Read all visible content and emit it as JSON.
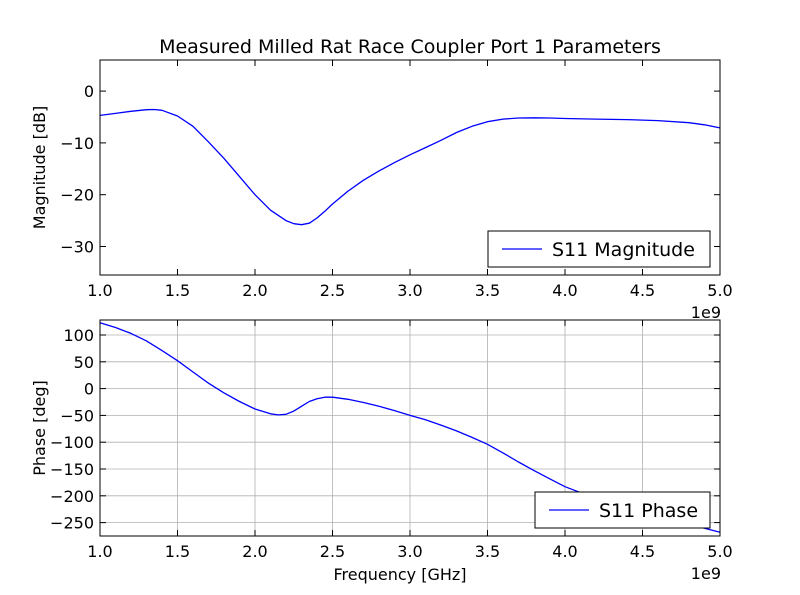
{
  "figure_title": "Measured Milled Rat Race Coupler Port 1 Parameters",
  "colors": {
    "series": "#0000ff",
    "grid": "#b0b0b0",
    "axes": "#000000"
  },
  "chart_data": [
    {
      "type": "line",
      "title": "Measured Milled Rat Race Coupler Port 1 Parameters",
      "xlabel": "",
      "ylabel": "Magnitude [dB]",
      "x_offset_label": "1e9",
      "xlim": [
        1.0,
        5.0
      ],
      "ylim": [
        -35.5,
        6
      ],
      "xticks": [
        "1.0",
        "1.5",
        "2.0",
        "2.5",
        "3.0",
        "3.5",
        "4.0",
        "4.5",
        "5.0"
      ],
      "yticks": [
        {
          "value": 0,
          "label": "0"
        },
        {
          "value": -10,
          "label": "−10"
        },
        {
          "value": -20,
          "label": "−20"
        },
        {
          "value": -30,
          "label": "−30"
        }
      ],
      "grid": false,
      "legend_position": "lower-right",
      "series": [
        {
          "name": "S11 Magnitude",
          "color": "#0000ff",
          "x": [
            1.0,
            1.1,
            1.2,
            1.3,
            1.35,
            1.4,
            1.5,
            1.6,
            1.7,
            1.8,
            1.9,
            2.0,
            2.1,
            2.2,
            2.25,
            2.3,
            2.35,
            2.4,
            2.45,
            2.5,
            2.6,
            2.7,
            2.8,
            2.9,
            3.0,
            3.1,
            3.2,
            3.3,
            3.4,
            3.5,
            3.6,
            3.7,
            3.8,
            3.9,
            4.0,
            4.2,
            4.4,
            4.6,
            4.8,
            4.9,
            5.0
          ],
          "y": [
            -4.7,
            -4.3,
            -3.9,
            -3.6,
            -3.55,
            -3.7,
            -4.8,
            -6.8,
            -9.8,
            -13.0,
            -16.5,
            -20.0,
            -23.0,
            -25.0,
            -25.6,
            -25.8,
            -25.5,
            -24.5,
            -23.2,
            -21.8,
            -19.3,
            -17.2,
            -15.4,
            -13.8,
            -12.3,
            -10.9,
            -9.5,
            -8.0,
            -6.8,
            -5.9,
            -5.4,
            -5.2,
            -5.15,
            -5.2,
            -5.3,
            -5.4,
            -5.5,
            -5.7,
            -6.1,
            -6.5,
            -7.1
          ]
        }
      ]
    },
    {
      "type": "line",
      "xlabel": "Frequency [GHz]",
      "ylabel": "Phase [deg]",
      "x_offset_label": "1e9",
      "xlim": [
        1.0,
        5.0
      ],
      "ylim": [
        -275,
        128
      ],
      "xticks": [
        "1.0",
        "1.5",
        "2.0",
        "2.5",
        "3.0",
        "3.5",
        "4.0",
        "4.5",
        "5.0"
      ],
      "yticks": [
        {
          "value": 100,
          "label": "100"
        },
        {
          "value": 50,
          "label": "50"
        },
        {
          "value": 0,
          "label": "0"
        },
        {
          "value": -50,
          "label": "−50"
        },
        {
          "value": -100,
          "label": "−100"
        },
        {
          "value": -150,
          "label": "−150"
        },
        {
          "value": -200,
          "label": "−200"
        },
        {
          "value": -250,
          "label": "−250"
        }
      ],
      "grid": true,
      "legend_position": "lower-right",
      "series": [
        {
          "name": "S11 Phase",
          "color": "#0000ff",
          "x": [
            1.0,
            1.1,
            1.2,
            1.3,
            1.4,
            1.5,
            1.6,
            1.7,
            1.8,
            1.9,
            2.0,
            2.1,
            2.15,
            2.2,
            2.25,
            2.3,
            2.35,
            2.4,
            2.45,
            2.5,
            2.6,
            2.7,
            2.8,
            2.9,
            3.0,
            3.1,
            3.2,
            3.3,
            3.4,
            3.5,
            3.6,
            3.7,
            3.8,
            3.9,
            4.0,
            4.2,
            4.4,
            4.6,
            4.8,
            5.0
          ],
          "y": [
            123,
            114,
            103,
            89,
            71,
            52,
            31,
            10,
            -8,
            -24,
            -38,
            -47,
            -49,
            -48,
            -42,
            -33,
            -24,
            -19,
            -16,
            -16,
            -20,
            -26,
            -33,
            -41,
            -50,
            -58,
            -68,
            -79,
            -91,
            -104,
            -120,
            -137,
            -153,
            -168,
            -183,
            -205,
            -222,
            -238,
            -253,
            -268
          ]
        }
      ]
    }
  ]
}
